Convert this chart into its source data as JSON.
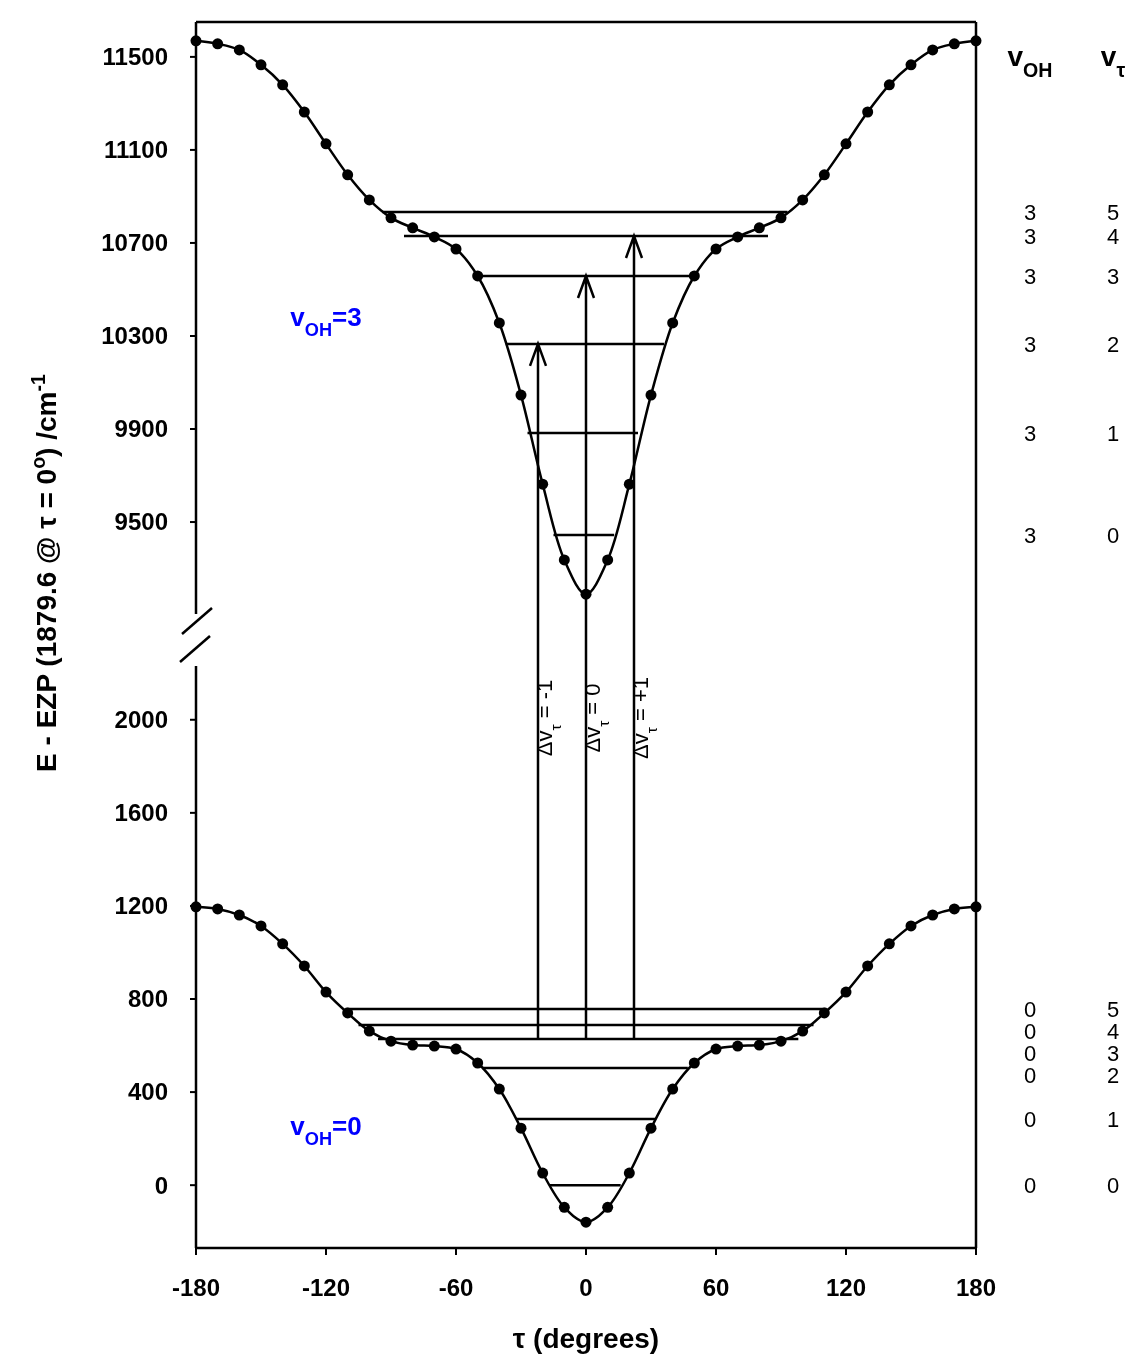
{
  "chart_data": [
    {
      "type": "line",
      "xlim": [
        -180,
        180
      ],
      "ylim": [
        9010,
        11650
      ],
      "yticks": [
        9500,
        9900,
        10300,
        10700,
        11100,
        11500
      ],
      "tick_labels": "y",
      "marker": "none",
      "series": [
        {
          "color": "#000000",
          "marker": "circle",
          "x": [
            -180,
            -170,
            -160,
            -150,
            -140,
            -130,
            -120,
            -110,
            -100,
            -90,
            -80,
            -70,
            -60,
            -50,
            -40,
            -30,
            -20,
            -10,
            0,
            10,
            20,
            30,
            40,
            50,
            60,
            70,
            80,
            90,
            100,
            110,
            120,
            130,
            140,
            150,
            160,
            170,
            180
          ],
          "values": [
            11569,
            11556,
            11530,
            11466,
            11380,
            11263,
            11126,
            10993,
            10885,
            10808,
            10765,
            10726,
            10674,
            10558,
            10356,
            10046,
            9663,
            9337,
            9190,
            9337,
            9663,
            10046,
            10356,
            10558,
            10674,
            10726,
            10765,
            10808,
            10885,
            10993,
            11126,
            11263,
            11380,
            11466,
            11530,
            11556,
            11569
          ]
        },
        {
          "color": "#000000",
          "x": [
            -94,
            93
          ],
          "values": [
            10833,
            10833
          ]
        },
        {
          "color": "#000000",
          "x": [
            -84,
            84
          ],
          "values": [
            10730,
            10730
          ]
        },
        {
          "color": "#000000",
          "x": [
            -51,
            49
          ],
          "values": [
            10558,
            10558
          ]
        },
        {
          "color": "#000000",
          "x": [
            -37,
            36
          ],
          "values": [
            10266,
            10266
          ]
        },
        {
          "color": "#000000",
          "x": [
            -27,
            24
          ],
          "values": [
            9883,
            9883
          ]
        },
        {
          "color": "#000000",
          "x": [
            -15,
            13
          ],
          "values": [
            9444,
            9444
          ]
        }
      ],
      "annotations": [
        "v$_{OH}$=3",
        "v$_{OH}$",
        "v$_{τ}$",
        "3",
        "5",
        "3",
        "4",
        "3",
        "3",
        "3",
        "2",
        "3",
        "1",
        "3",
        "0"
      ]
    },
    {
      "type": "line",
      "xlim": [
        -180,
        180
      ],
      "xticks": [
        -180,
        -120,
        -60,
        0,
        60,
        120,
        180
      ],
      "ylim": [
        -270,
        2360
      ],
      "yticks": [
        0,
        400,
        800,
        1200,
        1600,
        2000
      ],
      "xlabel": "τ (degrees)",
      "ylabel": "E - EZP (1879.6 @ τ = 0$^{o}$) /cm$^{-1}$",
      "marker": "none",
      "series": [
        {
          "color": "#000000",
          "marker": "circle",
          "x": [
            -180,
            -170,
            -160,
            -150,
            -140,
            -130,
            -120,
            -110,
            -100,
            -90,
            -80,
            -70,
            -60,
            -50,
            -40,
            -30,
            -20,
            -10,
            0,
            10,
            20,
            30,
            40,
            50,
            60,
            70,
            80,
            90,
            100,
            110,
            120,
            130,
            140,
            150,
            160,
            170,
            180
          ],
          "values": [
            1196,
            1187,
            1161,
            1114,
            1037,
            942,
            830,
            740,
            662,
            619,
            602,
            598,
            585,
            525,
            413,
            245,
            52,
            -95,
            -159,
            -95,
            52,
            245,
            413,
            525,
            585,
            598,
            602,
            619,
            662,
            740,
            830,
            942,
            1037,
            1114,
            1161,
            1187,
            1196
          ]
        },
        {
          "color": "#000000",
          "x": [
            -111,
            111
          ],
          "values": [
            757,
            757
          ]
        },
        {
          "color": "#000000",
          "x": [
            -105,
            105
          ],
          "values": [
            688,
            688
          ]
        },
        {
          "color": "#000000",
          "x": [
            -96,
            98
          ],
          "values": [
            628,
            628
          ]
        },
        {
          "color": "#000000",
          "x": [
            -48,
            47
          ],
          "values": [
            503,
            503
          ]
        },
        {
          "color": "#000000",
          "x": [
            -32,
            32
          ],
          "values": [
            284,
            284
          ]
        },
        {
          "color": "#000000",
          "x": [
            -17,
            16
          ],
          "values": [
            0,
            0
          ]
        }
      ],
      "annotations": [
        "v$_{OH}$=0",
        "Δv$_{τ}$ = -1",
        "Δv$_{τ}$ = 0",
        "Δv$_{τ}$ = +1",
        "0",
        "5",
        "0",
        "4",
        "0",
        "3",
        "0",
        "2",
        "0",
        "1",
        "0",
        "0"
      ]
    }
  ]
}
